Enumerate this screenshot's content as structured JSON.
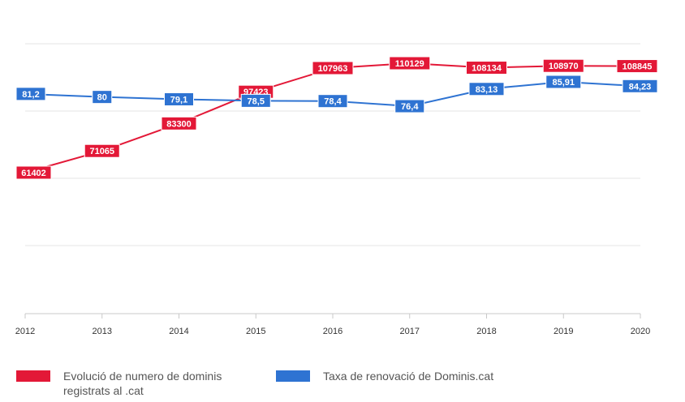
{
  "chart_data": {
    "type": "line",
    "categories": [
      "2012",
      "2013",
      "2014",
      "2015",
      "2016",
      "2017",
      "2018",
      "2019",
      "2020"
    ],
    "series": [
      {
        "name": "Evolució de numero de dominis registrats al .cat",
        "color": "#e31837",
        "axis": "left",
        "values": [
          61402,
          71065,
          83300,
          97423,
          107963,
          110129,
          108134,
          108970,
          108845
        ],
        "labels": [
          "61402",
          "71065",
          "83300",
          "97423",
          "107963",
          "110129",
          "108134",
          "108970",
          "108845"
        ]
      },
      {
        "name": "Taxa de renovació de Dominis.cat",
        "color": "#2e73d2",
        "axis": "right",
        "values": [
          81.2,
          80,
          79.1,
          78.5,
          78.4,
          76.4,
          83.13,
          85.91,
          84.23
        ],
        "labels": [
          "81,2",
          "80",
          "79,1",
          "78,5",
          "78,4",
          "76,4",
          "83,13",
          "85,91",
          "84,23"
        ]
      }
    ],
    "ylim_left": [
      40000,
      140000
    ],
    "ylim_right": [
      50000,
      100
    ]
  },
  "legend": [
    {
      "label": "Evolució de numero de dominis registrats al .cat",
      "color": "#e31837"
    },
    {
      "label": "Taxa de renovació de Dominis.cat",
      "color": "#2e73d2"
    }
  ]
}
